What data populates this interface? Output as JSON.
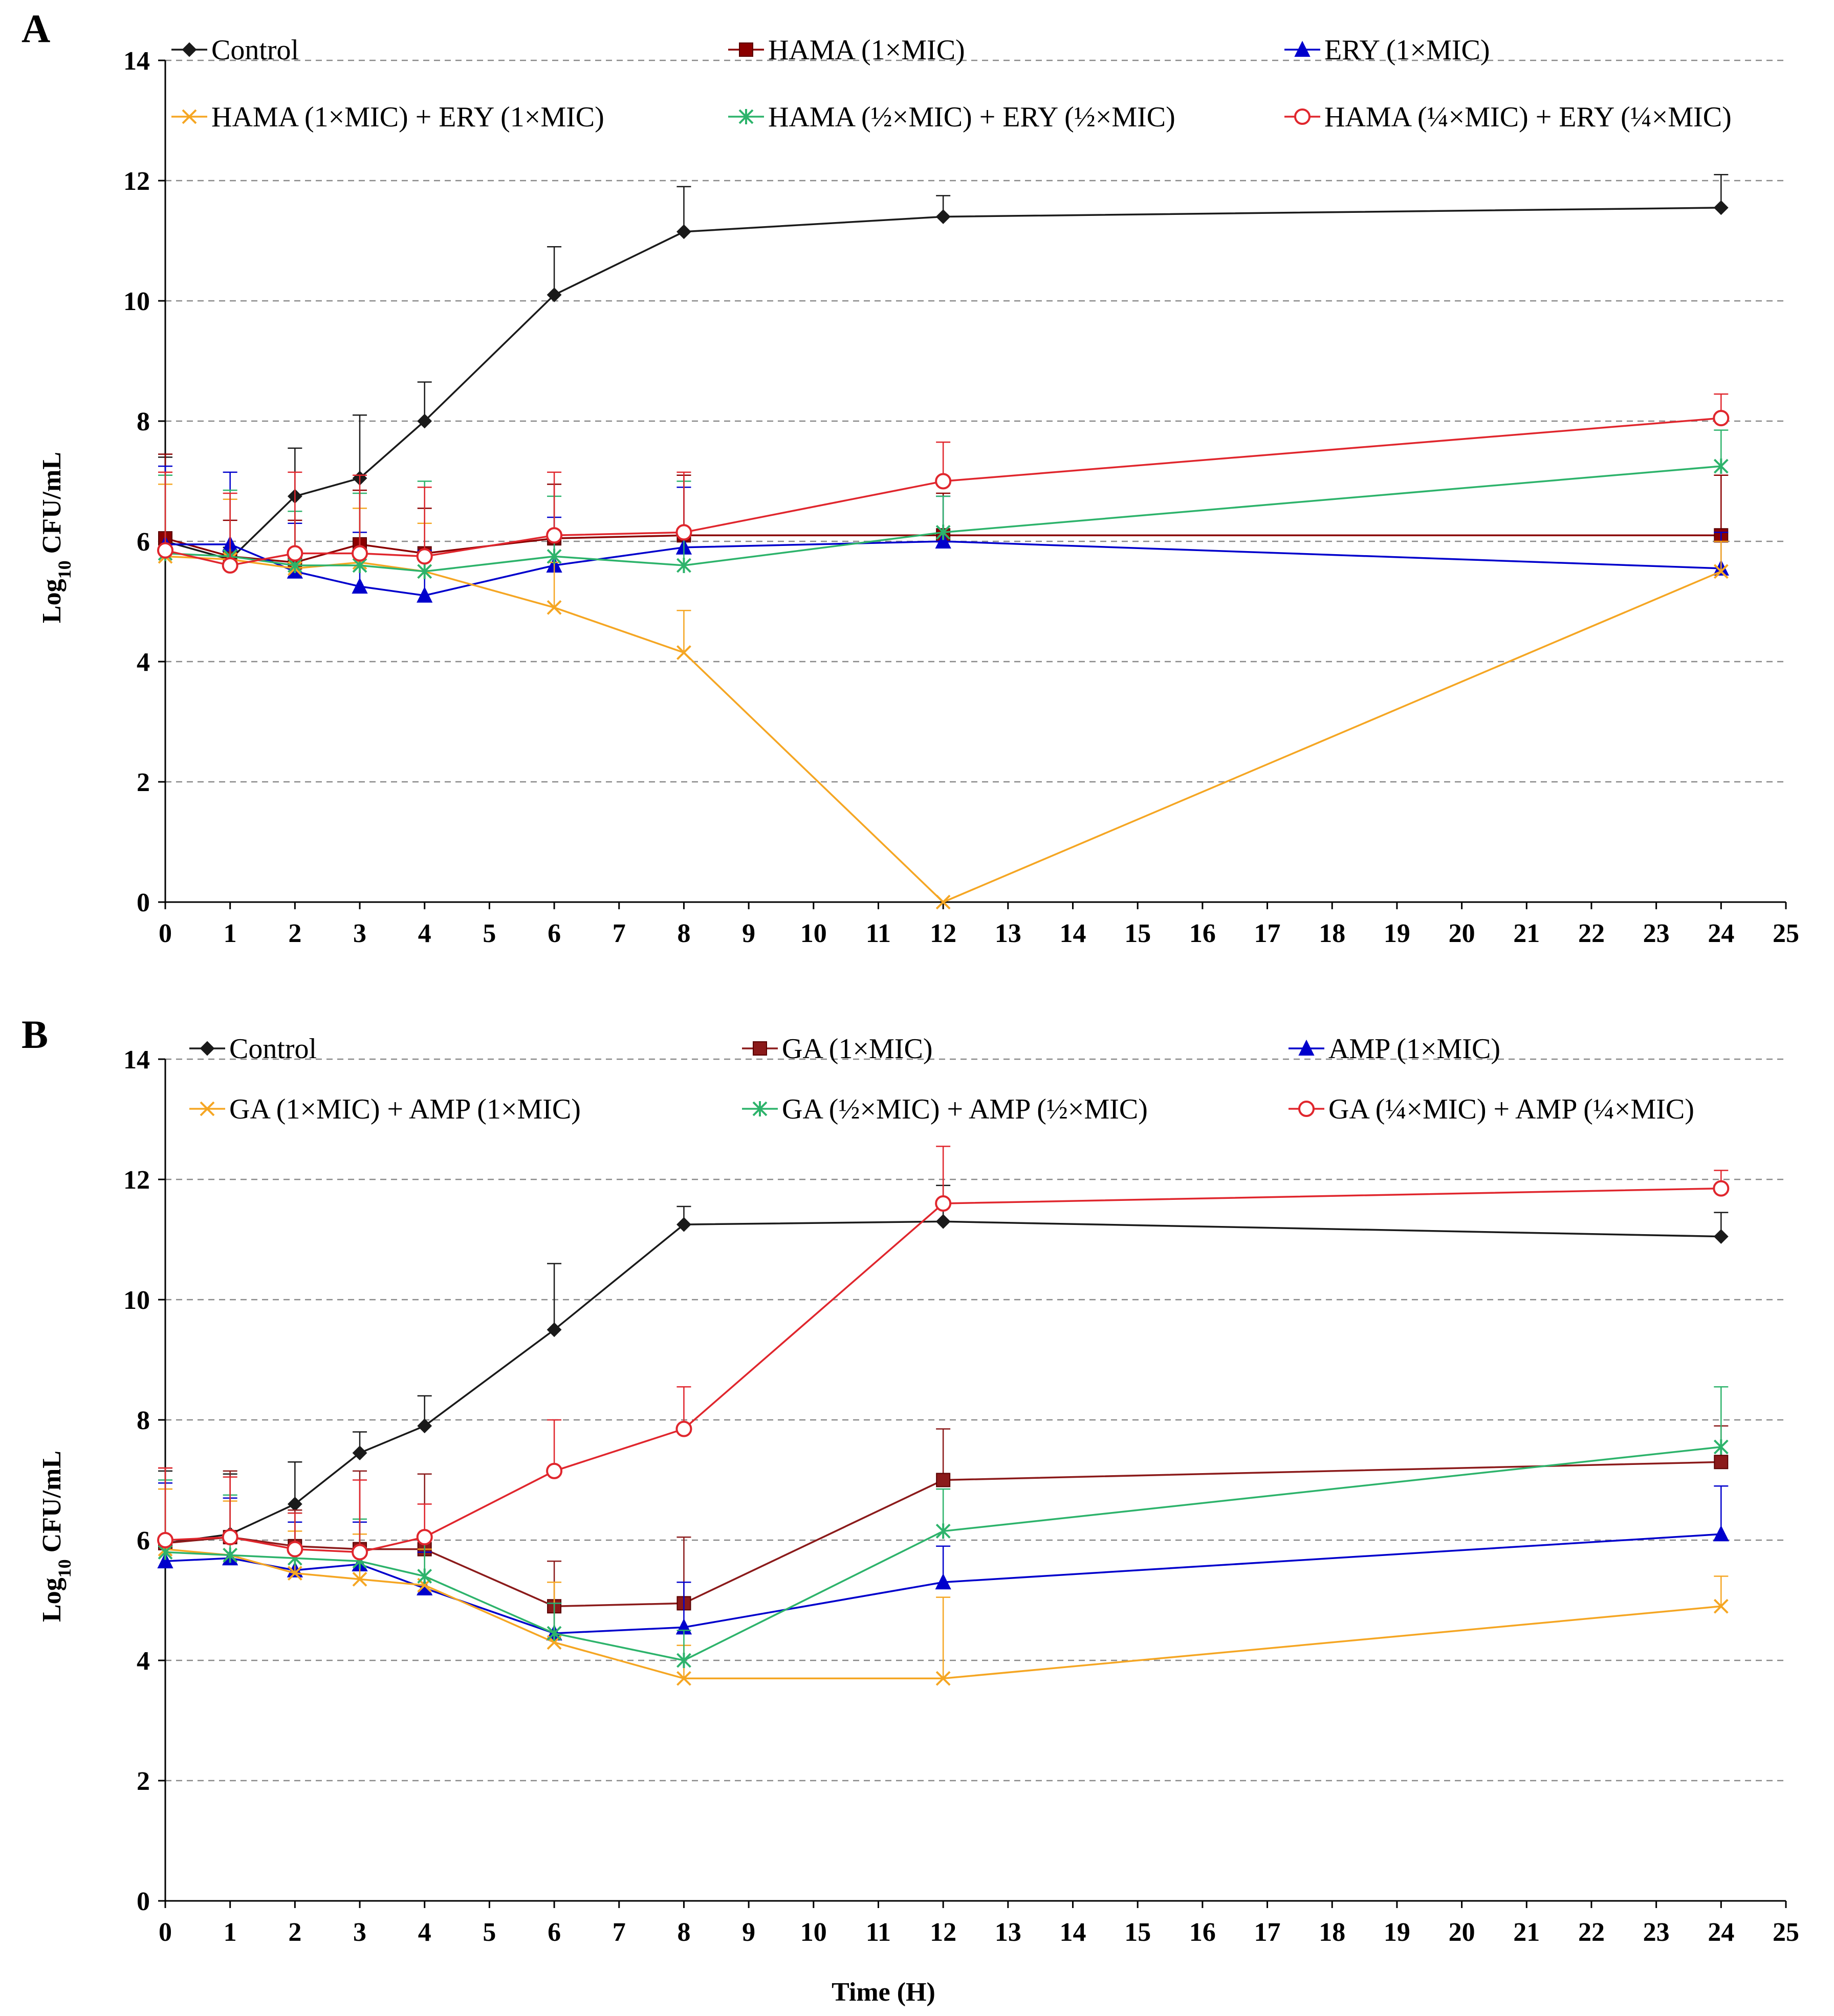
{
  "chart_data": [
    {
      "type": "line",
      "panel_label": "A",
      "title": "",
      "xlabel": "",
      "ylabel": "Log10 CFU/mL",
      "xlim": [
        0,
        25
      ],
      "ylim": [
        0,
        14
      ],
      "x_ticks": [
        0,
        1,
        2,
        3,
        4,
        5,
        6,
        7,
        8,
        9,
        10,
        11,
        12,
        13,
        14,
        15,
        16,
        17,
        18,
        19,
        20,
        21,
        22,
        23,
        24,
        25
      ],
      "y_ticks": [
        0,
        2,
        4,
        6,
        8,
        10,
        12,
        14
      ],
      "grid": "horizontal dashed",
      "legend_position": "top",
      "x": [
        0,
        1,
        2,
        3,
        4,
        6,
        8,
        12,
        24
      ],
      "series": [
        {
          "name": "Control",
          "color": "#1a1a1a",
          "marker": "diamond",
          "values": [
            6.0,
            5.7,
            6.75,
            7.05,
            8.0,
            10.1,
            11.15,
            11.4,
            11.55
          ],
          "errors": [
            1.4,
            0.2,
            0.8,
            1.05,
            0.65,
            0.8,
            0.75,
            0.35,
            0.55
          ]
        },
        {
          "name": "HAMA (1×MIC)",
          "color": "#8b0000",
          "marker": "square",
          "values": [
            6.05,
            5.75,
            5.65,
            5.95,
            5.8,
            6.05,
            6.1,
            6.1,
            6.1
          ],
          "errors": [
            1.4,
            0.6,
            0.7,
            0.9,
            0.75,
            0.9,
            1.0,
            0.7,
            1.0
          ]
        },
        {
          "name": "ERY (1×MIC)",
          "color": "#0000cc",
          "marker": "triangle",
          "values": [
            5.95,
            5.95,
            5.5,
            5.25,
            5.1,
            5.6,
            5.9,
            6.0,
            5.55
          ],
          "errors": [
            1.3,
            1.2,
            0.8,
            0.9,
            0.75,
            0.8,
            1.0,
            0.75,
            0.6
          ]
        },
        {
          "name": "HAMA (1×MIC) + ERY (1×MIC)",
          "color": "#f5a623",
          "marker": "x",
          "values": [
            5.75,
            5.7,
            5.55,
            5.65,
            5.5,
            4.9,
            4.15,
            0.0,
            5.5
          ],
          "errors": [
            1.2,
            1.0,
            0.95,
            0.9,
            0.8,
            0.75,
            0.7,
            0.0,
            0.5
          ]
        },
        {
          "name": "HAMA (½×MIC) + ERY (½×MIC)",
          "color": "#2db36b",
          "marker": "asterisk",
          "values": [
            5.8,
            5.75,
            5.6,
            5.6,
            5.5,
            5.75,
            5.6,
            6.15,
            7.25
          ],
          "errors": [
            1.3,
            1.1,
            0.9,
            1.2,
            1.5,
            1.0,
            1.4,
            0.6,
            0.6
          ]
        },
        {
          "name": "HAMA (¼×MIC) + ERY (¼×MIC)",
          "color": "#e0262d",
          "marker": "circle",
          "values": [
            5.85,
            5.6,
            5.8,
            5.8,
            5.75,
            6.1,
            6.15,
            7.0,
            8.05
          ],
          "errors": [
            1.3,
            1.2,
            1.35,
            1.3,
            1.15,
            1.05,
            1.0,
            0.65,
            0.4
          ]
        }
      ]
    },
    {
      "type": "line",
      "panel_label": "B",
      "title": "",
      "xlabel": "Time (H)",
      "ylabel": "Log10 CFU/mL",
      "xlim": [
        0,
        25
      ],
      "ylim": [
        0,
        14
      ],
      "x_ticks": [
        0,
        1,
        2,
        3,
        4,
        5,
        6,
        7,
        8,
        9,
        10,
        11,
        12,
        13,
        14,
        15,
        16,
        17,
        18,
        19,
        20,
        21,
        22,
        23,
        24,
        25
      ],
      "y_ticks": [
        0,
        2,
        4,
        6,
        8,
        10,
        12,
        14
      ],
      "grid": "horizontal dashed",
      "legend_position": "top",
      "x": [
        0,
        1,
        2,
        3,
        4,
        6,
        8,
        12,
        24
      ],
      "series": [
        {
          "name": "Control",
          "color": "#1a1a1a",
          "marker": "diamond",
          "values": [
            5.95,
            6.1,
            6.6,
            7.45,
            7.9,
            9.5,
            11.25,
            11.3,
            11.05
          ],
          "errors": [
            1.2,
            1.0,
            0.7,
            0.35,
            0.5,
            1.1,
            0.3,
            0.6,
            0.4
          ]
        },
        {
          "name": "GA (1×MIC)",
          "color": "#8b1a1a",
          "marker": "square",
          "values": [
            5.95,
            6.05,
            5.9,
            5.85,
            5.85,
            4.9,
            4.95,
            7.0,
            7.3
          ],
          "errors": [
            1.25,
            1.1,
            0.6,
            1.3,
            1.25,
            0.75,
            1.1,
            0.85,
            0.6
          ]
        },
        {
          "name": "AMP (1×MIC)",
          "color": "#0000cc",
          "marker": "triangle",
          "values": [
            5.65,
            5.7,
            5.5,
            5.6,
            5.2,
            4.45,
            4.55,
            5.3,
            6.1
          ],
          "errors": [
            1.3,
            1.0,
            0.8,
            0.7,
            0.6,
            0.5,
            0.75,
            0.6,
            0.8
          ]
        },
        {
          "name": "GA (1×MIC) + AMP (1×MIC)",
          "color": "#f5a623",
          "marker": "x",
          "values": [
            5.85,
            5.75,
            5.45,
            5.35,
            5.25,
            4.3,
            3.7,
            3.7,
            4.9
          ],
          "errors": [
            1.0,
            0.9,
            0.7,
            0.75,
            0.6,
            1.0,
            0.55,
            1.35,
            0.5
          ]
        },
        {
          "name": "GA (½×MIC) + AMP (½×MIC)",
          "color": "#2db36b",
          "marker": "asterisk",
          "values": [
            5.8,
            5.75,
            5.7,
            5.65,
            5.4,
            4.45,
            4.0,
            6.15,
            7.55
          ],
          "errors": [
            1.2,
            1.0,
            0.75,
            0.7,
            0.6,
            0.5,
            0.5,
            0.7,
            1.0
          ]
        },
        {
          "name": "GA (¼×MIC) + AMP (¼×MIC)",
          "color": "#e0262d",
          "marker": "circle",
          "values": [
            6.0,
            6.05,
            5.85,
            5.8,
            6.05,
            7.15,
            7.85,
            11.6,
            11.85
          ],
          "errors": [
            1.2,
            1.0,
            0.6,
            1.2,
            0.55,
            0.85,
            0.7,
            0.95,
            0.3
          ]
        }
      ]
    }
  ]
}
